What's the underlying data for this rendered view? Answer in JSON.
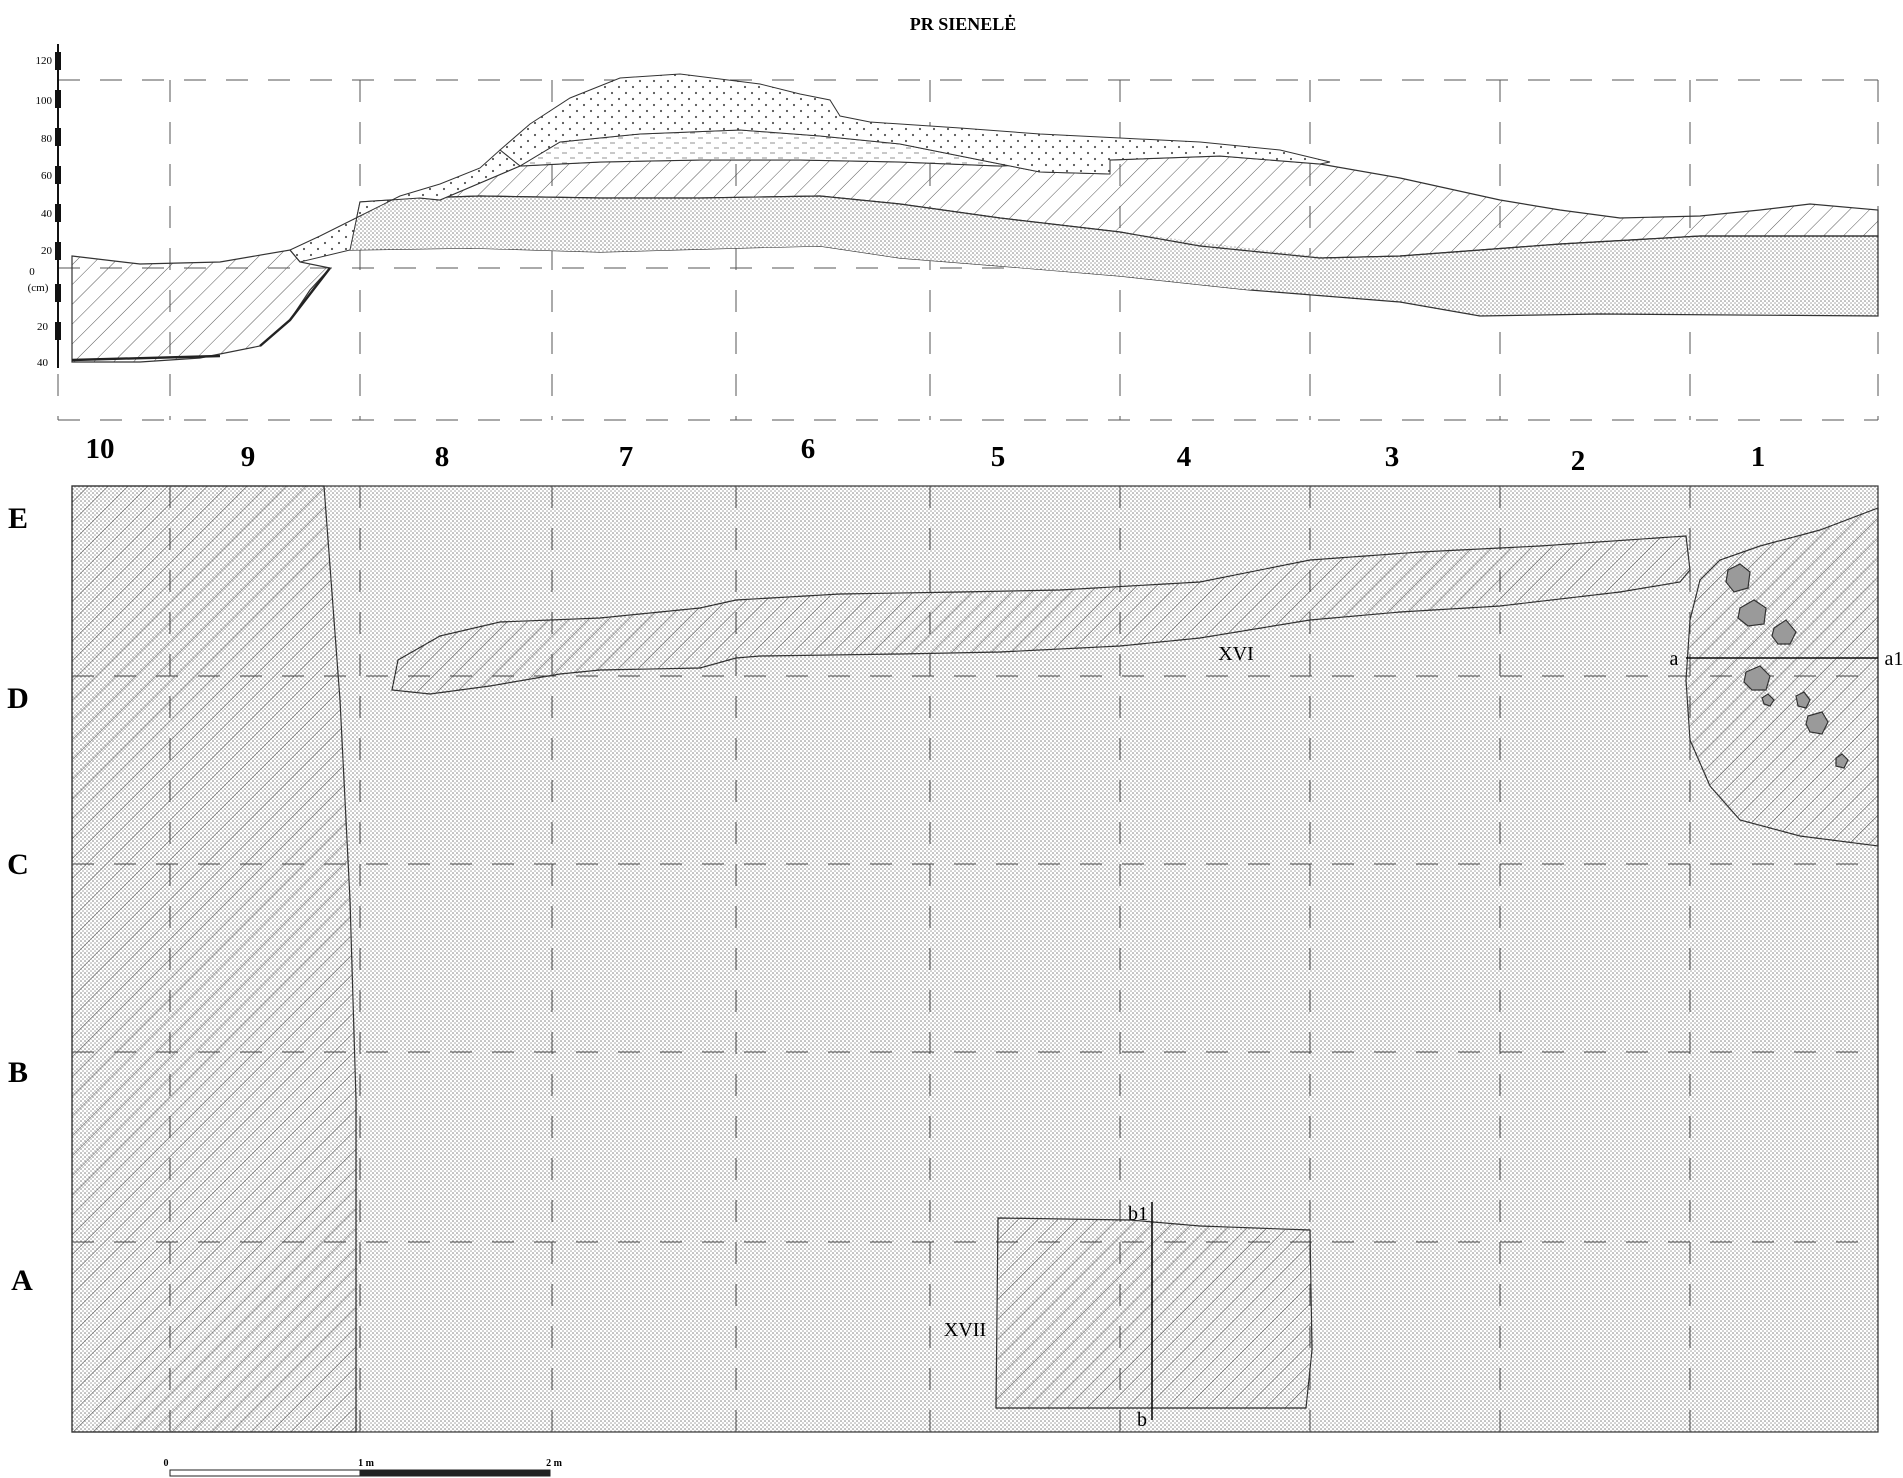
{
  "title": "PR SIENELĖ",
  "vertical_scale": {
    "ticks_above": [
      "120",
      "100",
      "80",
      "60",
      "40",
      "20"
    ],
    "zero_label": "0",
    "unit_label": "(cm)",
    "ticks_below": [
      "20",
      "40"
    ]
  },
  "columns": [
    "10",
    "9",
    "8",
    "7",
    "6",
    "5",
    "4",
    "3",
    "2",
    "1"
  ],
  "rows": [
    "E",
    "D",
    "C",
    "B",
    "A"
  ],
  "features": {
    "feature_xvi": "XVI",
    "feature_xvii": "XVII",
    "section_a": "a",
    "section_a1": "a1",
    "section_b": "b",
    "section_b1": "b1"
  },
  "scale_bar": {
    "label_0": "0",
    "label_1": "1 m",
    "label_2": "2 m"
  },
  "colors": {
    "line": "#333333",
    "grid_dash": "#555555",
    "stone_fill": "#9a9a9a"
  }
}
